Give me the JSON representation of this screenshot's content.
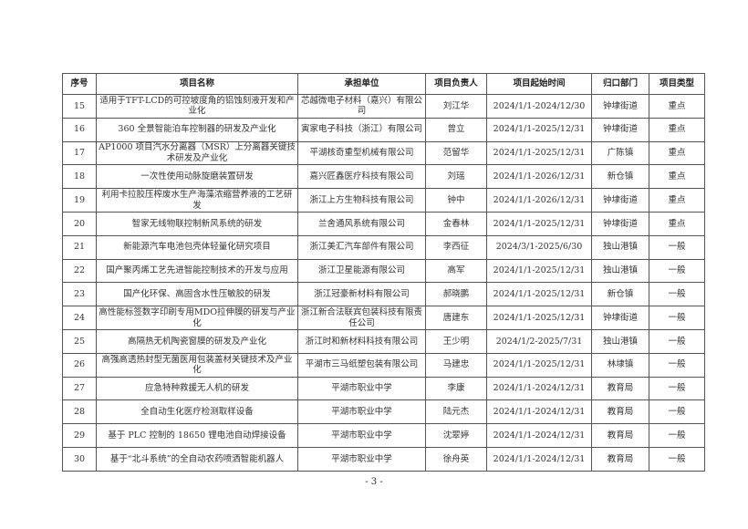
{
  "headers": [
    "序号",
    "项目名称",
    "承担单位",
    "项目负责人",
    "项目起始时间",
    "归口部门",
    "项目类型"
  ],
  "rows": [
    [
      "15",
      "适用于TFT-LCD的可控坡度角的铝蚀刻液开发和产业化",
      "芯越微电子材料（嘉兴）有限公司",
      "刘江华",
      "2024/1/1-2024/12/30",
      "钟埭街道",
      "重点"
    ],
    [
      "16",
      "360 全景智能泊车控制器的研发及产业化",
      "寅家电子科技（浙江）有限公司",
      "曾立",
      "2024/1/1-2025/12/31",
      "钟埭街道",
      "重点"
    ],
    [
      "17",
      "AP1000 项目汽水分离器（MSR）上分离器关键技术研发及产业化",
      "平湖核奇重型机械有限公司",
      "范留华",
      "2024/1/1-2025/12/31",
      "广陈镇",
      "重点"
    ],
    [
      "18",
      "一次性使用动脉旋磨装置研发",
      "嘉兴匠鑫医疗科技有限公司",
      "刘瑶",
      "2024/1/1-2026/12/31",
      "新仓镇",
      "重点"
    ],
    [
      "19",
      "利用卡拉胶压榨废水生产海藻浓缩营养液的工艺研发",
      "浙江上方生物科技有限公司",
      "钟中",
      "2024/1/1-2026/12/31",
      "钟埭街道",
      "重点"
    ],
    [
      "20",
      "智家无线物联控制新风系统的研发",
      "兰舍通风系统有限公司",
      "金春林",
      "2024/1/1-2025/12/31",
      "钟埭街道",
      "重点"
    ],
    [
      "21",
      "新能源汽车电池包壳体轻量化研究项目",
      "浙江美汇汽车部件有限公司",
      "李西征",
      "2024/3/1-2025/6/30",
      "独山港镇",
      "一般"
    ],
    [
      "22",
      "国产聚丙烯工艺先进智能控制技术的开发与应用",
      "浙江卫星能源有限公司",
      "高军",
      "2024/1/1-2025/12/31",
      "独山港镇",
      "一般"
    ],
    [
      "23",
      "国产化环保、高固含水性压敏胶的研发",
      "浙江冠豪新材料有限公司",
      "郝晓鹏",
      "2024/1/1-2025/12/31",
      "新仓镇",
      "一般"
    ],
    [
      "24",
      "高性能标签数字印刷专用MDO拉伸膜的研发与产业化",
      "浙江新合法联宾包装科技有限责任公司",
      "唐建东",
      "2024/1/1-2025/12/31",
      "钟埭街道",
      "一般"
    ],
    [
      "25",
      "高隔热无机陶瓷窗膜的研发及产业化",
      "浙江时和新材料科技有限公司",
      "王少明",
      "2024/1/2-2025/7/31",
      "独山港镇",
      "一般"
    ],
    [
      "26",
      "高强高透热封型无菌医用包装盖材关键技术及产业化",
      "平湖市三马纸塑包装有限公司",
      "马建忠",
      "2024/1/1-2025/12/31",
      "林埭镇",
      "一般"
    ],
    [
      "27",
      "应急特种救援无人机的研发",
      "平湖市职业中学",
      "李康",
      "2024/1/1-2024/12/31",
      "教育局",
      "一般"
    ],
    [
      "28",
      "全自动生化医疗检测取样设备",
      "平湖市职业中学",
      "陆元杰",
      "2024/1/1-2024/12/31",
      "教育局",
      "一般"
    ],
    [
      "29",
      "基于 PLC 控制的 18650 锂电池自动焊接设备",
      "平湖市职业中学",
      "沈翠婷",
      "2024/1/1-2024/12/31",
      "教育局",
      "一般"
    ],
    [
      "30",
      "基于“北斗系统”的全自动农药喷洒智能机器人",
      "平湖市职业中学",
      "徐舟英",
      "2024/1/1-2024/12/31",
      "教育局",
      "一般"
    ]
  ],
  "page_number": "- 3 -"
}
